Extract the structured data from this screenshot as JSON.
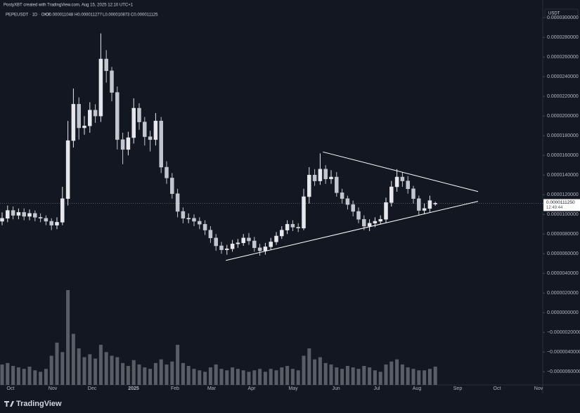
{
  "header": "PostyXBT created with TradingView.com, Aug 15, 2025 12:10 UTC+1",
  "chart_data": {
    "type": "candlestick",
    "legend": {
      "symbol": "PEPEUSDT · 1D · OKX",
      "open": "O0.000011048",
      "high": "H0.000011277",
      "low": "L0.000010873",
      "close": "C0.000011125"
    },
    "currency": "USDT",
    "x_labels": [
      "Oct",
      "Nov",
      "Dec",
      "2025",
      "Feb",
      "Mar",
      "Apr",
      "May",
      "Jun",
      "Jul",
      "Aug",
      "Sep",
      "Oct",
      "Nov"
    ],
    "open": [
      9.3e-06,
      9.6e-06,
      1.04e-05,
      9.9e-06,
      1.02e-05,
      9.8e-06,
      1.01e-05,
      9.7e-06,
      9.6e-06,
      9.3e-06,
      8.9e-06,
      9.2e-06,
      1.16e-05,
      1.75e-05,
      2.12e-05,
      1.88e-05,
      1.9e-05,
      2.06e-05,
      2e-05,
      2.58e-05,
      2.46e-05,
      2.24e-05,
      1.76e-05,
      1.66e-05,
      1.78e-05,
      2.08e-05,
      1.94e-05,
      1.79e-05,
      1.76e-05,
      1.95e-05,
      1.48e-05,
      1.37e-05,
      1.21e-05,
      1.03e-05,
      9.6e-06,
      9.6e-06,
      9.3e-06,
      9e-06,
      8.4e-06,
      7.6e-06,
      6.8e-06,
      6.4e-06,
      6.5e-06,
      7e-06,
      7.1e-06,
      7.6e-06,
      7.3e-06,
      6.6e-06,
      6.3e-06,
      6.7e-06,
      7.2e-06,
      7.8e-06,
      8.4e-06,
      9e-06,
      8.7e-06,
      8.6e-06,
      1.18e-05,
      1.4e-05,
      1.34e-05,
      1.46e-05,
      1.36e-05,
      1.38e-05,
      1.22e-05,
      1.16e-05,
      1.1e-05,
      1.03e-05,
      9.5e-06,
      8.8e-06,
      9.1e-06,
      9.3e-06,
      9.5e-06,
      1.12e-05,
      1.28e-05,
      1.38e-05,
      1.34e-05,
      1.26e-05,
      1.16e-05,
      1.04e-05,
      1.06e-05,
      1.1048e-05
    ],
    "high": [
      1.02e-05,
      1.09e-05,
      1.08e-05,
      1.06e-05,
      1.06e-05,
      1.05e-05,
      1.04e-05,
      1.01e-05,
      9.9e-06,
      9.6e-06,
      9.7e-06,
      1.28e-05,
      1.95e-05,
      2.28e-05,
      2.19e-05,
      2e-05,
      2.14e-05,
      2.12e-05,
      2.84e-05,
      2.67e-05,
      2.5e-05,
      2.3e-05,
      1.83e-05,
      1.84e-05,
      2.18e-05,
      2.13e-05,
      1.99e-05,
      1.85e-05,
      2.03e-05,
      1.99e-05,
      1.54e-05,
      1.42e-05,
      1.26e-05,
      1.07e-05,
      1.01e-05,
      1e-05,
      9.7e-06,
      9.4e-06,
      8.8e-06,
      8e-06,
      7.2e-06,
      6.9e-06,
      7.4e-06,
      7.5e-06,
      8e-06,
      8.1e-06,
      7.7e-06,
      7e-06,
      7.1e-06,
      7.6e-06,
      8.2e-06,
      8.8e-06,
      9.4e-06,
      9.4e-06,
      9.1e-06,
      1.26e-05,
      1.48e-05,
      1.46e-05,
      1.62e-05,
      1.5e-05,
      1.45e-05,
      1.43e-05,
      1.26e-05,
      1.19e-05,
      1.14e-05,
      1.07e-05,
      9.9e-06,
      9.5e-06,
      9.7e-06,
      9.9e-06,
      1.17e-05,
      1.34e-05,
      1.46e-05,
      1.43e-05,
      1.39e-05,
      1.29e-05,
      1.19e-05,
      1.11e-05,
      1.19e-05,
      1.1277e-05
    ],
    "low": [
      8.9e-06,
      9.2e-06,
      9.5e-06,
      9.5e-06,
      9.4e-06,
      9.4e-06,
      9.3e-06,
      9.2e-06,
      8.9e-06,
      8.4e-06,
      8.5e-06,
      8.9e-06,
      1.09e-05,
      1.68e-05,
      1.76e-05,
      1.81e-05,
      1.83e-05,
      1.93e-05,
      1.94e-05,
      2.34e-05,
      2.15e-05,
      1.66e-05,
      1.51e-05,
      1.6e-05,
      1.72e-05,
      1.86e-05,
      1.7e-05,
      1.64e-05,
      1.7e-05,
      1.42e-05,
      1.31e-05,
      1.16e-05,
      9.7e-06,
      9.1e-06,
      9.1e-06,
      8.8e-06,
      8.5e-06,
      7.9e-06,
      7.1e-06,
      6.3e-06,
      6e-06,
      5.9e-06,
      6.2e-06,
      6.6e-06,
      6.8e-06,
      6.9e-06,
      6.2e-06,
      5.8e-06,
      5.9e-06,
      6.4e-06,
      6.9e-06,
      7.5e-06,
      8e-06,
      8.3e-06,
      8.2e-06,
      8.4e-06,
      1.11e-05,
      1.29e-05,
      1.3e-05,
      1.31e-05,
      1.31e-05,
      1.18e-05,
      1.11e-05,
      1.05e-05,
      9.8e-06,
      9.1e-06,
      8.4e-06,
      8.3e-06,
      8.7e-06,
      9e-06,
      9.1e-06,
      1.08e-05,
      1.23e-05,
      1.28e-05,
      1.21e-05,
      1.11e-05,
      9.9e-06,
      1e-05,
      1.02e-05,
      1.0873e-05
    ],
    "close": [
      9.6e-06,
      1.04e-05,
      9.9e-06,
      1.02e-05,
      9.8e-06,
      1.01e-05,
      9.7e-06,
      9.6e-06,
      9.3e-06,
      8.9e-06,
      9.2e-06,
      1.16e-05,
      1.75e-05,
      2.12e-05,
      1.88e-05,
      1.9e-05,
      2.06e-05,
      2e-05,
      2.58e-05,
      2.46e-05,
      2.24e-05,
      1.76e-05,
      1.66e-05,
      1.78e-05,
      2.08e-05,
      1.94e-05,
      1.79e-05,
      1.76e-05,
      1.95e-05,
      1.48e-05,
      1.37e-05,
      1.21e-05,
      1.03e-05,
      9.6e-06,
      9.6e-06,
      9.3e-06,
      9e-06,
      8.4e-06,
      7.6e-06,
      6.8e-06,
      6.4e-06,
      6.5e-06,
      7e-06,
      7.1e-06,
      7.6e-06,
      7.3e-06,
      6.6e-06,
      6.3e-06,
      6.7e-06,
      7.2e-06,
      7.8e-06,
      8.4e-06,
      9e-06,
      8.7e-06,
      8.6e-06,
      1.18e-05,
      1.4e-05,
      1.34e-05,
      1.46e-05,
      1.36e-05,
      1.38e-05,
      1.22e-05,
      1.16e-05,
      1.1e-05,
      1.03e-05,
      9.5e-06,
      8.8e-06,
      9.1e-06,
      9.3e-06,
      9.5e-06,
      1.12e-05,
      1.28e-05,
      1.38e-05,
      1.34e-05,
      1.26e-05,
      1.16e-05,
      1.04e-05,
      1.06e-05,
      1.14e-05,
      1.1125e-05
    ],
    "volume": [
      28,
      30,
      26,
      24,
      22,
      25,
      20,
      18,
      22,
      40,
      58,
      45,
      130,
      70,
      50,
      38,
      42,
      36,
      55,
      45,
      40,
      38,
      30,
      26,
      34,
      28,
      24,
      22,
      30,
      35,
      28,
      32,
      55,
      30,
      26,
      22,
      20,
      18,
      24,
      28,
      22,
      20,
      24,
      22,
      20,
      18,
      20,
      22,
      18,
      22,
      20,
      24,
      26,
      22,
      20,
      40,
      50,
      35,
      38,
      30,
      28,
      24,
      22,
      26,
      24,
      22,
      26,
      24,
      20,
      18,
      28,
      32,
      35,
      28,
      24,
      22,
      20,
      20,
      22,
      25
    ],
    "ylim": [
      -7.2e-06,
      3.18e-05
    ],
    "yticks": [
      {
        "value": 3e-05,
        "label": "0.0000300000"
      },
      {
        "value": 2.8e-05,
        "label": "0.0000280000"
      },
      {
        "value": 2.6e-05,
        "label": "0.0000260000"
      },
      {
        "value": 2.4e-05,
        "label": "0.0000240000"
      },
      {
        "value": 2.2e-05,
        "label": "0.0000220000"
      },
      {
        "value": 2e-05,
        "label": "0.0000200000"
      },
      {
        "value": 1.8e-05,
        "label": "0.0000180000"
      },
      {
        "value": 1.6e-05,
        "label": "0.0000160000"
      },
      {
        "value": 1.4e-05,
        "label": "0.0000140000"
      },
      {
        "value": 1.2e-05,
        "label": "0.0000120000"
      },
      {
        "value": 1e-05,
        "label": "0.0000100000"
      },
      {
        "value": 8e-06,
        "label": "0.0000080000"
      },
      {
        "value": 6e-06,
        "label": "0.0000060000"
      },
      {
        "value": 4e-06,
        "label": "0.0000040000"
      },
      {
        "value": 2e-06,
        "label": "0.0000020000"
      },
      {
        "value": 0,
        "label": "0.0000000000"
      },
      {
        "value": -2e-06,
        "label": "−0.0000020000"
      },
      {
        "value": -4e-06,
        "label": "−0.0000040000"
      },
      {
        "value": -6e-06,
        "label": "−0.0000060000"
      }
    ],
    "last_price": {
      "value": 1.1125e-05,
      "label": "0.0000111250",
      "countdown": "12:49:44"
    },
    "trendlines": [
      {
        "from": [
          40.8,
          5.32e-06
        ],
        "to": [
          86.8,
          1.133e-05
        ]
      },
      {
        "from": [
          58.5,
          1.635e-05
        ],
        "to": [
          86.8,
          1.232e-05
        ]
      }
    ],
    "bull_color": "#e6e8ee",
    "bear_color": "#c2c6ce",
    "volume_color": "#6b6f78",
    "grid": false
  },
  "brand": "TradingView"
}
